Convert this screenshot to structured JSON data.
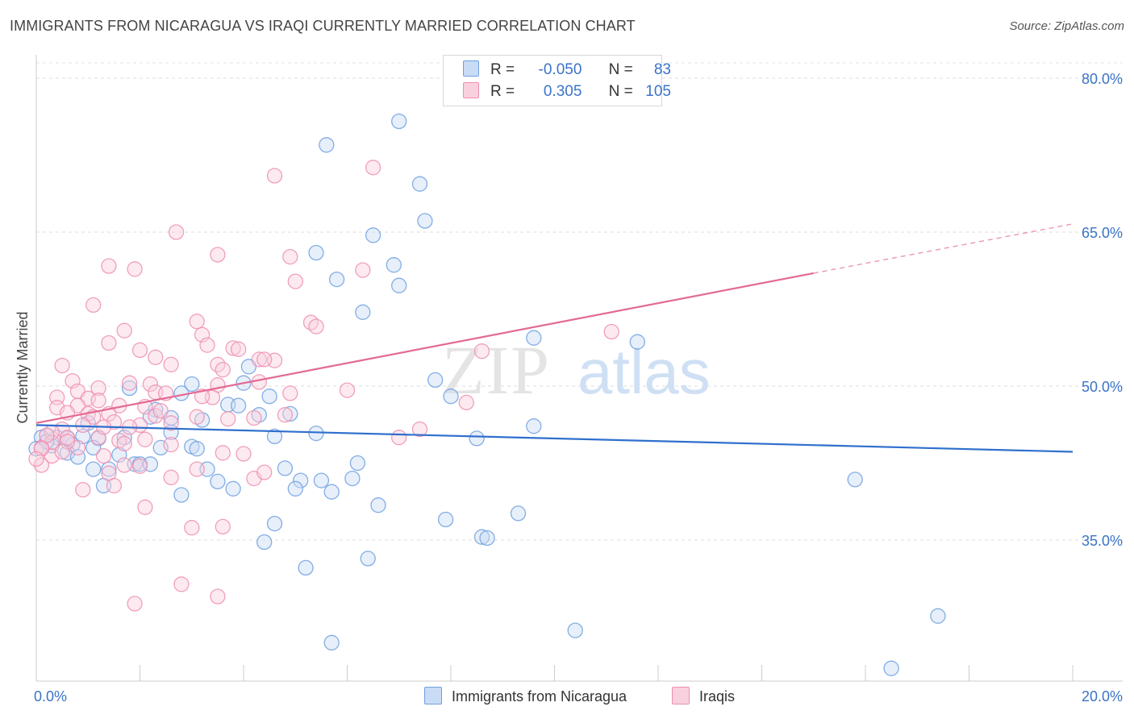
{
  "title": "IMMIGRANTS FROM NICARAGUA VS IRAQI CURRENTLY MARRIED CORRELATION CHART",
  "source": "Source: ZipAtlas.com",
  "watermark": {
    "zip": "ZIP",
    "atlas": "atlas"
  },
  "legend": {
    "rows": [
      {
        "r_label": "R =",
        "r_value": "-0.050",
        "n_label": "N =",
        "n_value": "83",
        "color": "#6fa0e0",
        "fill": "#c9dcf5"
      },
      {
        "r_label": "R =",
        "r_value": "0.305",
        "n_label": "N =",
        "n_value": "105",
        "color": "#ee8fb0",
        "fill": "#f9d0de"
      }
    ]
  },
  "bottom_legend": [
    {
      "label": "Immigrants from Nicaragua",
      "color": "#6fa0e0",
      "fill": "#c9dcf5"
    },
    {
      "label": "Iraqis",
      "color": "#ee8fb0",
      "fill": "#f9d0de"
    }
  ],
  "chart_data": {
    "type": "scatter",
    "ylabel": "Currently Married",
    "xlim": [
      0,
      20
    ],
    "ylim": [
      20,
      82
    ],
    "x_tick_labels": {
      "left": "0.0%",
      "right": "20.0%"
    },
    "y_ticks": [
      {
        "value": 80,
        "label": "80.0%"
      },
      {
        "value": 65,
        "label": "65.0%"
      },
      {
        "value": 50,
        "label": "50.0%"
      },
      {
        "value": 35,
        "label": "35.0%"
      }
    ],
    "grid": true,
    "series": [
      {
        "name": "Immigrants from Nicaragua",
        "color": "#6fa0e0",
        "fill": "#c9dcf5",
        "trend": {
          "x0": 0,
          "y0": 46.2,
          "x1": 20,
          "y1": 43.6,
          "dashed_from": null
        },
        "points": [
          [
            7.0,
            75.8
          ],
          [
            5.6,
            73.5
          ],
          [
            7.4,
            69.7
          ],
          [
            7.5,
            66.1
          ],
          [
            6.5,
            64.7
          ],
          [
            5.4,
            63.0
          ],
          [
            5.8,
            60.4
          ],
          [
            7.0,
            59.8
          ],
          [
            6.3,
            57.2
          ],
          [
            6.9,
            61.8
          ],
          [
            9.6,
            54.7
          ],
          [
            11.6,
            54.3
          ],
          [
            4.1,
            51.9
          ],
          [
            7.7,
            50.6
          ],
          [
            3.0,
            50.2
          ],
          [
            4.0,
            50.3
          ],
          [
            1.8,
            49.8
          ],
          [
            2.8,
            49.3
          ],
          [
            4.5,
            49.0
          ],
          [
            8.0,
            49.0
          ],
          [
            3.7,
            48.2
          ],
          [
            3.9,
            48.1
          ],
          [
            2.3,
            47.7
          ],
          [
            4.3,
            47.2
          ],
          [
            4.9,
            47.3
          ],
          [
            2.2,
            47.0
          ],
          [
            2.6,
            46.9
          ],
          [
            3.2,
            46.7
          ],
          [
            9.6,
            46.1
          ],
          [
            1.0,
            46.4
          ],
          [
            2.6,
            45.5
          ],
          [
            0.2,
            45.2
          ],
          [
            0.4,
            45.0
          ],
          [
            0.1,
            45.0
          ],
          [
            0.6,
            44.9
          ],
          [
            1.2,
            44.9
          ],
          [
            1.7,
            45.0
          ],
          [
            4.6,
            45.1
          ],
          [
            5.4,
            45.4
          ],
          [
            8.5,
            44.9
          ],
          [
            0.3,
            44.2
          ],
          [
            0.7,
            44.3
          ],
          [
            1.1,
            44.0
          ],
          [
            2.4,
            44.0
          ],
          [
            3.0,
            44.1
          ],
          [
            3.1,
            43.9
          ],
          [
            0.0,
            43.9
          ],
          [
            0.6,
            43.5
          ],
          [
            0.8,
            43.1
          ],
          [
            1.6,
            43.3
          ],
          [
            1.9,
            42.4
          ],
          [
            2.0,
            42.4
          ],
          [
            2.2,
            42.4
          ],
          [
            6.2,
            42.5
          ],
          [
            3.3,
            41.9
          ],
          [
            4.8,
            42.0
          ],
          [
            1.1,
            41.9
          ],
          [
            1.4,
            41.9
          ],
          [
            3.5,
            40.7
          ],
          [
            5.1,
            40.8
          ],
          [
            5.5,
            40.8
          ],
          [
            6.1,
            41.0
          ],
          [
            3.8,
            40.0
          ],
          [
            5.0,
            40.0
          ],
          [
            5.7,
            39.7
          ],
          [
            1.3,
            40.3
          ],
          [
            2.8,
            39.4
          ],
          [
            15.8,
            40.9
          ],
          [
            6.6,
            38.4
          ],
          [
            7.9,
            37.0
          ],
          [
            9.3,
            37.6
          ],
          [
            4.6,
            36.6
          ],
          [
            8.6,
            35.3
          ],
          [
            8.7,
            35.2
          ],
          [
            4.4,
            34.8
          ],
          [
            6.4,
            33.2
          ],
          [
            5.2,
            32.3
          ],
          [
            10.4,
            26.2
          ],
          [
            17.4,
            27.6
          ],
          [
            5.7,
            25.0
          ],
          [
            16.5,
            22.5
          ],
          [
            0.2,
            44.6
          ],
          [
            0.9,
            45.1
          ]
        ]
      },
      {
        "name": "Iraqis",
        "color": "#ee8fb0",
        "fill": "#f9d0de",
        "trend": {
          "x0": 0,
          "y0": 46.4,
          "x1": 15.0,
          "y1": 61.0,
          "dashed_from": 15.0,
          "x2": 20,
          "y2": 65.8
        },
        "points": [
          [
            6.5,
            71.3
          ],
          [
            4.6,
            70.5
          ],
          [
            2.7,
            65.0
          ],
          [
            3.5,
            62.8
          ],
          [
            4.9,
            62.6
          ],
          [
            1.4,
            61.7
          ],
          [
            1.9,
            61.4
          ],
          [
            6.3,
            61.3
          ],
          [
            5.0,
            60.2
          ],
          [
            1.1,
            57.9
          ],
          [
            3.1,
            56.3
          ],
          [
            5.3,
            56.2
          ],
          [
            5.4,
            55.8
          ],
          [
            1.7,
            55.4
          ],
          [
            11.1,
            55.3
          ],
          [
            3.2,
            55.0
          ],
          [
            1.4,
            54.2
          ],
          [
            3.3,
            54.0
          ],
          [
            3.8,
            53.7
          ],
          [
            3.9,
            53.6
          ],
          [
            8.6,
            53.4
          ],
          [
            2.0,
            53.5
          ],
          [
            2.3,
            52.8
          ],
          [
            4.3,
            52.6
          ],
          [
            4.6,
            52.5
          ],
          [
            0.5,
            52.0
          ],
          [
            2.6,
            52.1
          ],
          [
            3.5,
            52.1
          ],
          [
            3.6,
            51.6
          ],
          [
            0.7,
            50.5
          ],
          [
            1.8,
            50.3
          ],
          [
            2.2,
            50.2
          ],
          [
            3.5,
            50.1
          ],
          [
            1.2,
            49.8
          ],
          [
            0.8,
            49.5
          ],
          [
            2.3,
            49.4
          ],
          [
            2.5,
            49.3
          ],
          [
            3.4,
            48.9
          ],
          [
            4.9,
            49.3
          ],
          [
            6.0,
            49.6
          ],
          [
            3.2,
            49.0
          ],
          [
            1.0,
            48.8
          ],
          [
            0.4,
            48.9
          ],
          [
            1.2,
            48.6
          ],
          [
            8.3,
            48.4
          ],
          [
            0.8,
            48.1
          ],
          [
            1.6,
            48.1
          ],
          [
            2.1,
            48.0
          ],
          [
            0.4,
            47.9
          ],
          [
            0.6,
            47.4
          ],
          [
            1.0,
            47.3
          ],
          [
            1.4,
            47.3
          ],
          [
            1.1,
            47.0
          ],
          [
            2.3,
            47.1
          ],
          [
            3.1,
            47.0
          ],
          [
            4.8,
            47.2
          ],
          [
            3.7,
            46.8
          ],
          [
            4.2,
            46.9
          ],
          [
            1.5,
            46.5
          ],
          [
            2.6,
            46.4
          ],
          [
            2.0,
            46.2
          ],
          [
            1.8,
            46.0
          ],
          [
            0.5,
            45.8
          ],
          [
            0.3,
            45.5
          ],
          [
            0.6,
            45.0
          ],
          [
            1.2,
            45.0
          ],
          [
            1.6,
            44.7
          ],
          [
            2.1,
            44.8
          ],
          [
            0.3,
            44.5
          ],
          [
            0.8,
            44.0
          ],
          [
            7.0,
            45.0
          ],
          [
            7.4,
            45.8
          ],
          [
            2.6,
            44.3
          ],
          [
            0.1,
            44.0
          ],
          [
            0.3,
            43.2
          ],
          [
            1.3,
            43.2
          ],
          [
            3.6,
            43.5
          ],
          [
            4.0,
            43.4
          ],
          [
            0.1,
            42.3
          ],
          [
            0.1,
            43.9
          ],
          [
            1.7,
            42.3
          ],
          [
            2.0,
            42.2
          ],
          [
            1.4,
            41.5
          ],
          [
            3.1,
            41.9
          ],
          [
            2.6,
            41.1
          ],
          [
            4.2,
            41.0
          ],
          [
            4.4,
            41.6
          ],
          [
            1.5,
            40.3
          ],
          [
            0.9,
            39.9
          ],
          [
            2.1,
            38.2
          ],
          [
            3.6,
            36.3
          ],
          [
            3.0,
            36.2
          ],
          [
            2.8,
            30.7
          ],
          [
            3.5,
            29.5
          ],
          [
            1.9,
            28.8
          ],
          [
            4.4,
            52.6
          ],
          [
            4.3,
            50.4
          ],
          [
            0.6,
            44.6
          ],
          [
            0.9,
            46.2
          ],
          [
            1.3,
            46.0
          ],
          [
            0.2,
            45.2
          ],
          [
            1.7,
            44.4
          ],
          [
            2.4,
            47.6
          ],
          [
            0.0,
            42.9
          ],
          [
            0.5,
            43.6
          ]
        ]
      }
    ]
  }
}
